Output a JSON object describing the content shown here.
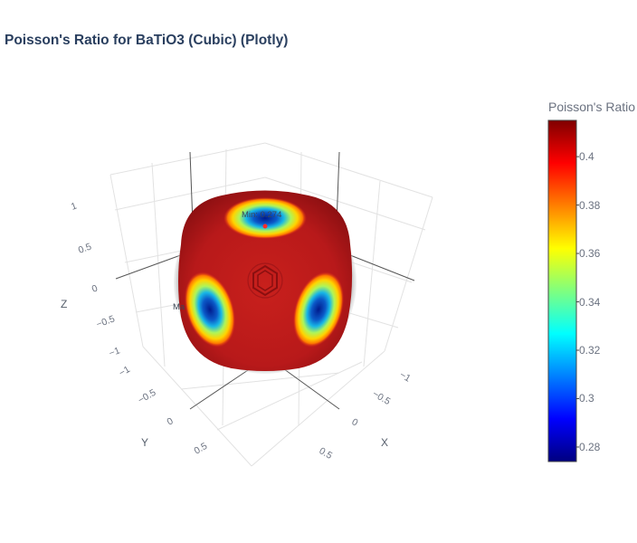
{
  "title": "Poisson's Ratio for BaTiO3 (Cubic) (Plotly)",
  "chart_data": {
    "type": "surface3d",
    "title": "Poisson's Ratio for BaTiO3 (Cubic) (Plotly)",
    "axes": {
      "x": {
        "title": "X",
        "ticks": [
          -1,
          -0.5,
          0,
          0.5
        ],
        "tick_labels": [
          "−1",
          "−0.5",
          "0",
          "0.5"
        ]
      },
      "y": {
        "title": "Y",
        "ticks": [
          -1,
          -0.5,
          0,
          0.5
        ],
        "tick_labels": [
          "−1",
          "−0.5",
          "0",
          "0.5"
        ]
      },
      "z": {
        "title": "Z",
        "ticks": [
          -1,
          -0.5,
          0,
          0.5,
          1
        ],
        "tick_labels": [
          "−1",
          "−0.5",
          "0",
          "0.5",
          "1"
        ]
      }
    },
    "colorscale": "Jet",
    "colorbar": {
      "title": "Poisson's Ratio",
      "range": [
        0.274,
        0.415
      ],
      "ticks": [
        0.28,
        0.3,
        0.32,
        0.34,
        0.36,
        0.38,
        0.4
      ],
      "tick_labels": [
        "0.28",
        "0.3",
        "0.32",
        "0.34",
        "0.36",
        "0.38",
        "0.4"
      ]
    },
    "annotations": [
      {
        "text": "Min: 0.274",
        "target": "top minimum"
      },
      {
        "text": "Ma",
        "target": "left (partially visible)"
      }
    ],
    "grid": true,
    "legend": "none"
  }
}
